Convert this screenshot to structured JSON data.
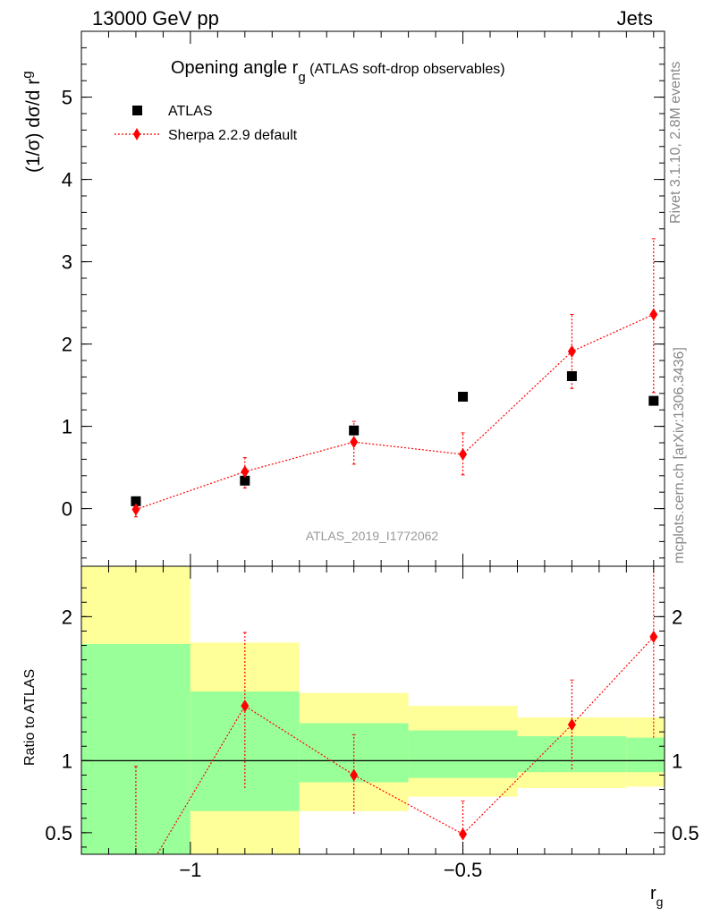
{
  "header": {
    "left": "13000 GeV pp",
    "right": "Jets"
  },
  "side_labels": {
    "rivet": "Rivet 3.1.10,  2.8M events",
    "mcplots": "mcplots.cern.ch [arXiv:1306.3436]"
  },
  "chart_data": [
    {
      "panel": "main",
      "type": "scatter",
      "title": {
        "main": "Opening angle r",
        "sub": "g",
        "tail": " (ATLAS soft-drop observables)"
      },
      "ylabel": {
        "main": "(1/σ) dσ/d r",
        "sub": "g"
      },
      "ylim": [
        -0.7,
        5.8
      ],
      "xlim": [
        -1.2,
        -0.13
      ],
      "yticks": [
        0,
        1,
        2,
        3,
        4,
        5
      ],
      "watermark": "ATLAS_2019_I1772062",
      "legend_position": "top-left",
      "series": [
        {
          "name": "ATLAS",
          "color": "#000000",
          "marker": "square",
          "x": [
            -1.1,
            -0.9,
            -0.7,
            -0.5,
            -0.3,
            -0.15
          ],
          "y": [
            0.09,
            0.34,
            0.95,
            1.36,
            1.61,
            1.31
          ]
        },
        {
          "name": "Sherpa 2.2.9 default",
          "color": "#ff0000",
          "marker": "diamond",
          "line": "dotted",
          "x": [
            -1.1,
            -0.9,
            -0.7,
            -0.5,
            -0.3,
            -0.15
          ],
          "y": [
            -0.01,
            0.45,
            0.81,
            0.66,
            1.91,
            2.36
          ],
          "err_lo": [
            0.09,
            0.2,
            0.27,
            0.25,
            0.45,
            0.95
          ],
          "err_hi": [
            0.05,
            0.17,
            0.25,
            0.26,
            0.45,
            0.92
          ]
        }
      ]
    },
    {
      "panel": "ratio",
      "type": "line",
      "ylabel": "Ratio to ATLAS",
      "xlabel": {
        "main": "r",
        "sub": "g"
      },
      "ylim": [
        0.35,
        2.35
      ],
      "yticks": [
        0.5,
        1,
        2
      ],
      "xticks": [
        -1,
        -0.5
      ],
      "xtick_labels": [
        "−1",
        "−0.5"
      ],
      "band_edges": [
        -1.2,
        -1.0,
        -0.8,
        -0.6,
        -0.4,
        -0.2,
        -0.1
      ],
      "band_yellow": {
        "color": "#ffff99",
        "lo": [
          0.3,
          0.3,
          0.65,
          0.75,
          0.81,
          0.82
        ],
        "hi": [
          2.5,
          1.82,
          1.47,
          1.38,
          1.3,
          1.3
        ]
      },
      "band_green": {
        "color": "#99ff99",
        "lo": [
          0.3,
          0.65,
          0.85,
          0.88,
          0.92,
          0.92
        ],
        "hi": [
          1.81,
          1.48,
          1.26,
          1.21,
          1.17,
          1.16
        ]
      },
      "reference": 1,
      "series": [
        {
          "name": "Sherpa 2.2.9 default",
          "color": "#ff0000",
          "x": [
            -1.1,
            -0.9,
            -0.7,
            -0.5,
            -0.3,
            -0.15
          ],
          "y": [
            0.1,
            1.38,
            0.9,
            0.49,
            1.25,
            1.86
          ],
          "err_lo": [
            0.1,
            0.57,
            0.27,
            0.21,
            0.31,
            0.7
          ],
          "err_hi": [
            0.86,
            0.51,
            0.28,
            0.23,
            0.31,
            0.7
          ]
        }
      ]
    }
  ]
}
